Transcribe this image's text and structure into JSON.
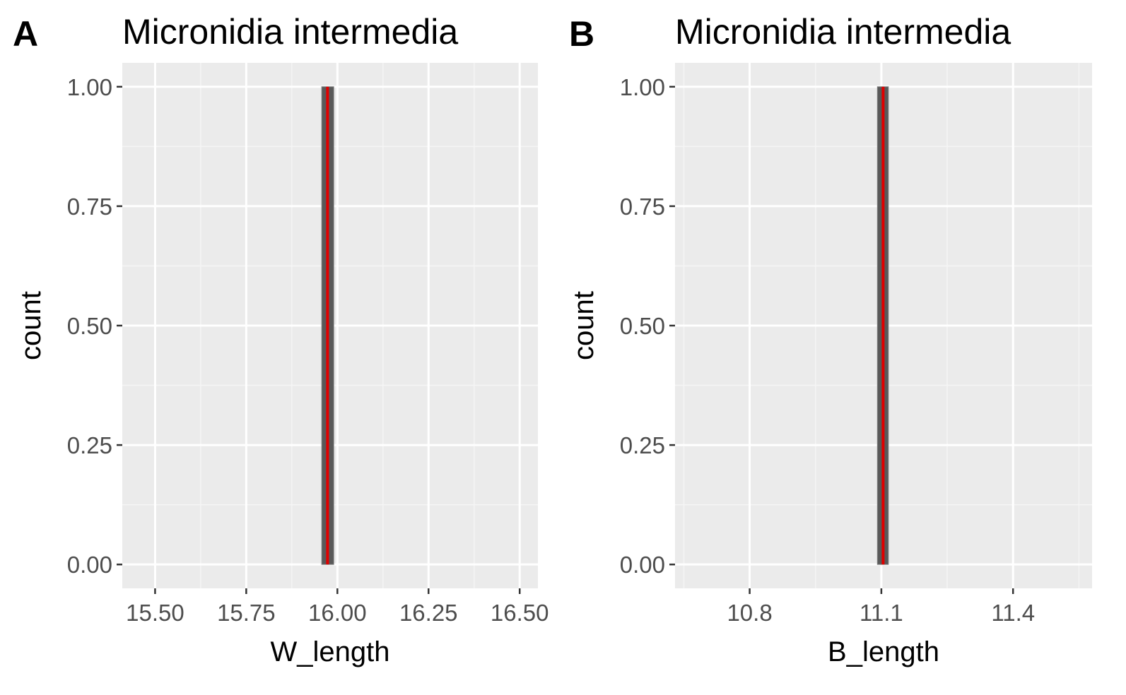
{
  "chart_data": [
    {
      "type": "bar",
      "tag": "A",
      "title": "Micronidia intermedia",
      "xlabel": "W_length",
      "ylabel": "count",
      "xlim": [
        15.41,
        16.55
      ],
      "ylim": [
        -0.05,
        1.05
      ],
      "x_ticks": [
        15.5,
        15.75,
        16.0,
        16.25,
        16.5
      ],
      "x_tick_labels": [
        "15.50",
        "15.75",
        "16.00",
        "16.25",
        "16.50"
      ],
      "y_ticks": [
        0,
        0.25,
        0.5,
        0.75,
        1.0
      ],
      "y_tick_labels": [
        "0.00",
        "0.25",
        "0.50",
        "0.75",
        "1.00"
      ],
      "bars": [
        {
          "x_start": 15.957,
          "x_end": 15.99,
          "count": 1
        }
      ],
      "reference_line_x": 15.973,
      "grid": true
    },
    {
      "type": "bar",
      "tag": "B",
      "title": "Micronidia intermedia",
      "xlabel": "B_length",
      "ylabel": "count",
      "xlim": [
        10.63,
        11.58
      ],
      "ylim": [
        -0.05,
        1.05
      ],
      "x_ticks": [
        10.8,
        11.1,
        11.4
      ],
      "x_tick_labels": [
        "10.8",
        "11.1",
        "11.4"
      ],
      "y_ticks": [
        0,
        0.25,
        0.5,
        0.75,
        1.0
      ],
      "y_tick_labels": [
        "0.00",
        "0.25",
        "0.50",
        "0.75",
        "1.00"
      ],
      "bars": [
        {
          "x_start": 11.091,
          "x_end": 11.116,
          "count": 1
        }
      ],
      "reference_line_x": 11.104,
      "grid": true
    }
  ],
  "colors": {
    "panel_background": "#ebebeb",
    "grid_major": "#ffffff",
    "grid_minor": "#f5f5f5",
    "bar_fill": "#595959",
    "bar_outline": "#808080",
    "reference_line": "#e00000",
    "tick_text": "#4d4d4d",
    "tick_mark": "#333333"
  }
}
